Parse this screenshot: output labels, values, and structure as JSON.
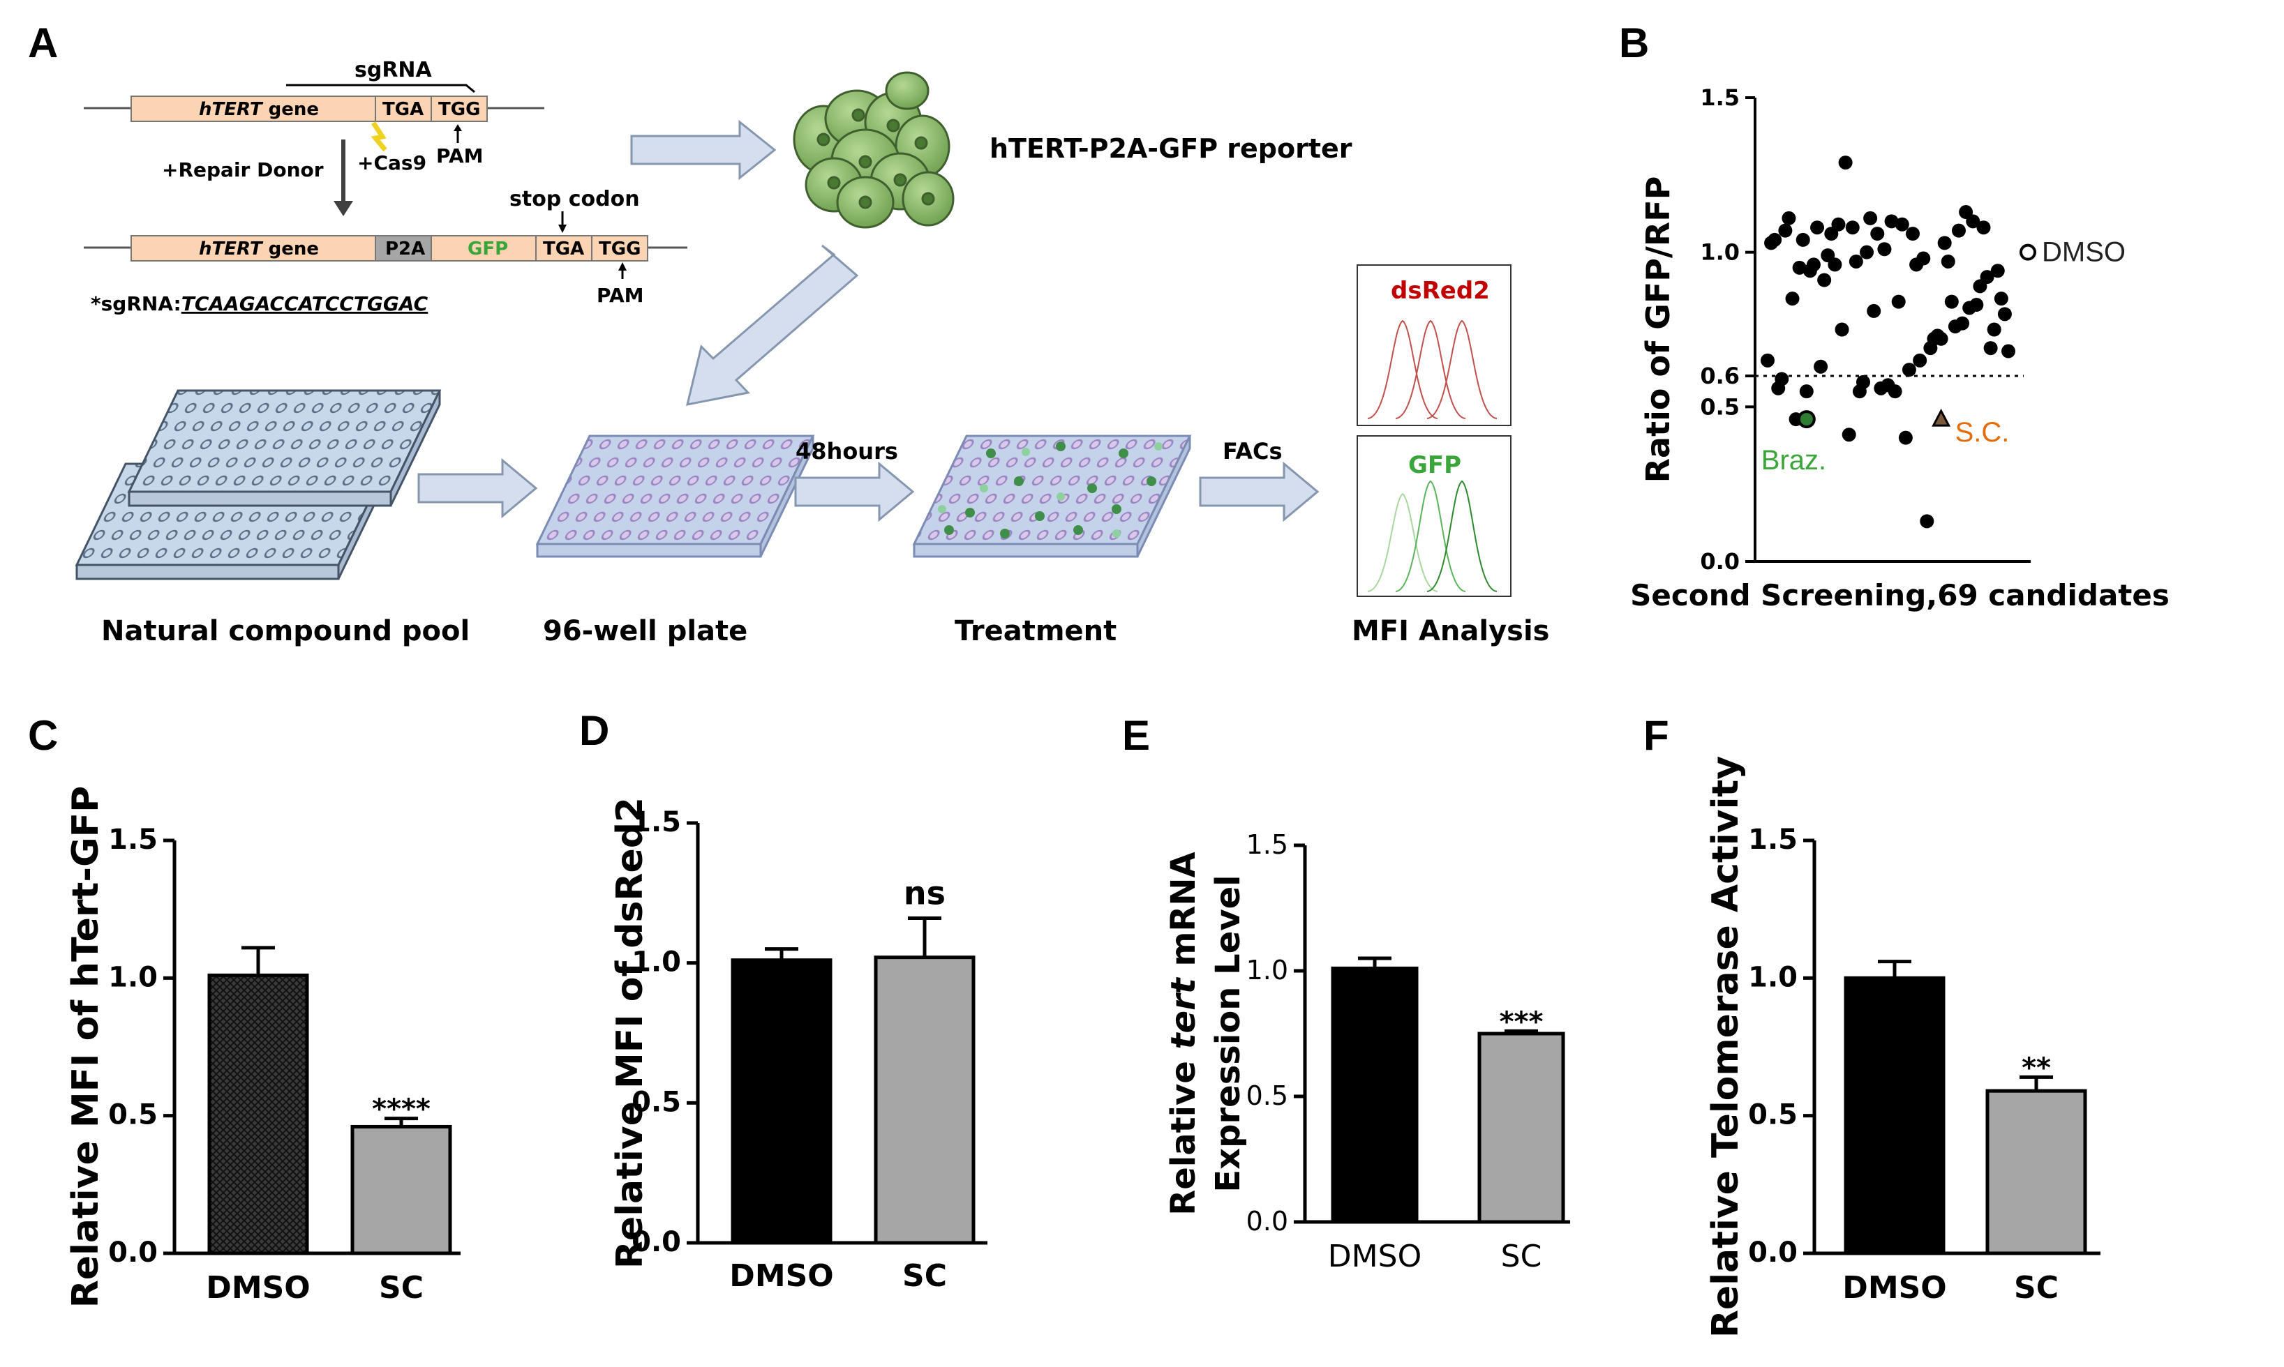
{
  "panels": {
    "A": {
      "letter": "A",
      "sgrna_label": "sgRNA",
      "gene_italic": "hTERT",
      "gene_word": " gene",
      "tga": "TGA",
      "tgg": "TGG",
      "pam": "PAM",
      "repair_donor": "+Repair Donor",
      "cas9": "+Cas9",
      "stop_codon": "stop codon",
      "p2a": "P2A",
      "gfp": "GFP",
      "sgrna_seq_prefix": "*sgRNA:",
      "sgrna_seq": "TCAAGACCATCCTGGAC",
      "reporter": "hTERT-P2A-GFP reporter",
      "time": "48hours",
      "facs": "FACs",
      "hist_red": "dsRed2",
      "hist_green": "GFP",
      "step_labels": [
        "Natural compound pool",
        "96-well plate",
        "Treatment",
        "MFI Analysis"
      ]
    },
    "B": {
      "letter": "B"
    },
    "C": {
      "letter": "C"
    },
    "D": {
      "letter": "D"
    },
    "E": {
      "letter": "E"
    },
    "F": {
      "letter": "F"
    }
  },
  "colors": {
    "gene_box": "#fbd4b4",
    "p2a_box": "#a6a6a6",
    "cell_fill": "#8fbc6b",
    "plate": "#c9d9ec",
    "dark_bar": "#000000",
    "gray_bar": "#a6a6a6",
    "dsred": "#c00000",
    "gfp": "#3aa63a",
    "sc_orange": "#e46c0a"
  },
  "chart_data": [
    {
      "id": "B",
      "type": "scatter",
      "xlabel": "Second Screening,69 candidates",
      "ylabel": "Ratio of GFP/RFP",
      "ylim": [
        0,
        1.5
      ],
      "yticks": [
        "1.5",
        "1.0",
        "0.6",
        "0.5",
        "0.0"
      ],
      "ytick_values": [
        1.5,
        1.0,
        0.6,
        0.5,
        0.0
      ],
      "threshold": 0.6,
      "y": [
        0.65,
        1.03,
        1.04,
        0.56,
        0.59,
        1.07,
        1.11,
        0.85,
        0.46,
        0.95,
        1.04,
        0.55,
        0.94,
        0.96,
        1.08,
        0.63,
        0.91,
        0.99,
        1.06,
        0.96,
        1.09,
        0.75,
        1.29,
        0.41,
        1.08,
        0.97,
        0.55,
        0.58,
        1.0,
        1.11,
        0.81,
        1.06,
        0.56,
        1.01,
        0.57,
        1.1,
        0.55,
        0.84,
        1.09,
        0.4,
        0.62,
        1.06,
        0.96,
        0.65,
        0.98,
        0.13,
        0.69,
        0.72,
        0.73,
        0.72,
        1.03,
        0.97,
        0.84,
        0.76,
        1.07,
        0.77,
        1.13,
        0.82,
        1.1,
        0.83,
        0.89,
        1.08,
        0.92,
        0.69,
        0.75,
        0.94,
        0.85,
        0.8,
        0.68
      ],
      "highlights": [
        {
          "name": "DMSO",
          "y": 1.0,
          "marker": "open-circle"
        },
        {
          "name": "Braz.",
          "y": 0.46,
          "marker": "green-circle"
        },
        {
          "name": "S.C.",
          "y": 0.46,
          "marker": "triangle"
        }
      ]
    },
    {
      "id": "C",
      "type": "bar",
      "categories": [
        "DMSO",
        "SC"
      ],
      "values": [
        1.01,
        0.46
      ],
      "errors": [
        0.1,
        0.03
      ],
      "ylabel": "Relative MFI of hTert-GFP",
      "ylim": [
        0,
        1.5
      ],
      "yticks": [
        "0.0",
        "0.5",
        "1.0",
        "1.5"
      ],
      "significance": "****"
    },
    {
      "id": "D",
      "type": "bar",
      "categories": [
        "DMSO",
        "SC"
      ],
      "values": [
        1.01,
        1.02
      ],
      "errors": [
        0.04,
        0.14
      ],
      "ylabel": "Relative MFI of dsRed2",
      "ylim": [
        0,
        1.5
      ],
      "yticks": [
        "0.0",
        "0.5",
        "1.0",
        "1.5"
      ],
      "significance": "ns"
    },
    {
      "id": "E",
      "type": "bar",
      "categories": [
        "DMSO",
        "SC"
      ],
      "values": [
        1.01,
        0.75
      ],
      "errors": [
        0.04,
        0.01
      ],
      "ylabel_parts": [
        "Relative ",
        "tert",
        " mRNA"
      ],
      "ylabel2": "Expression Level",
      "ylim": [
        0,
        1.5
      ],
      "yticks": [
        "0.0",
        "0.5",
        "1.0",
        "1.5"
      ],
      "significance": "***"
    },
    {
      "id": "F",
      "type": "bar",
      "categories": [
        "DMSO",
        "SC"
      ],
      "values": [
        1.0,
        0.59
      ],
      "errors": [
        0.06,
        0.05
      ],
      "ylabel": "Relative Telomerase Activity",
      "ylim": [
        0,
        1.5
      ],
      "yticks": [
        "0.0",
        "0.5",
        "1.0",
        "1.5"
      ],
      "significance": "**"
    }
  ]
}
